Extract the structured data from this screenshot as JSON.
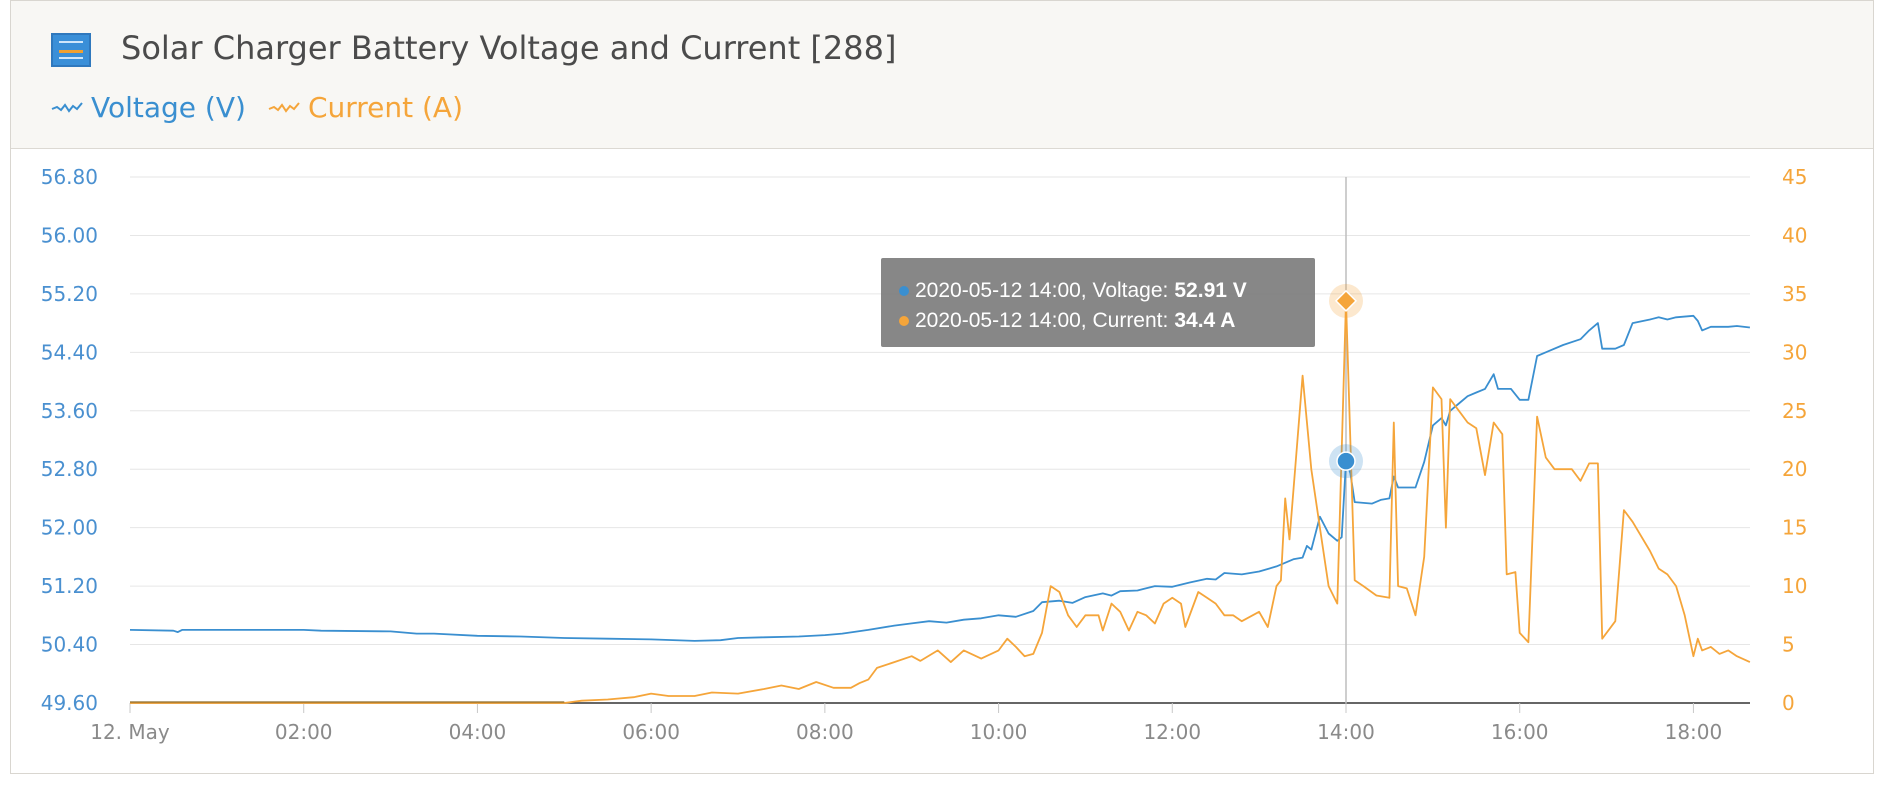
{
  "title": "Solar Charger Battery Voltage and Current [288]",
  "colors": {
    "voltage": "#3a8fd0",
    "current": "#f5a53a",
    "grid": "#e6e6e6",
    "axis_text_left": "#4a90d0",
    "axis_text_right": "#f5a53a"
  },
  "legend": [
    {
      "label": "Voltage (V)",
      "color": "#3a8fd0"
    },
    {
      "label": "Current (A)",
      "color": "#f5a53a"
    }
  ],
  "tooltip": {
    "voltage_prefix": "2020-05-12 14:00, Voltage:",
    "voltage_value": "52.91 V",
    "current_prefix": "2020-05-12 14:00, Current:",
    "current_value": "34.4 A"
  },
  "chart_data": {
    "type": "line",
    "x_unit": "hours",
    "x_ticks": [
      {
        "label": "12. May",
        "value": 0
      },
      {
        "label": "02:00",
        "value": 2
      },
      {
        "label": "04:00",
        "value": 4
      },
      {
        "label": "06:00",
        "value": 6
      },
      {
        "label": "08:00",
        "value": 8
      },
      {
        "label": "10:00",
        "value": 10
      },
      {
        "label": "12:00",
        "value": 12
      },
      {
        "label": "14:00",
        "value": 14
      },
      {
        "label": "16:00",
        "value": 16
      },
      {
        "label": "18:00",
        "value": 18
      }
    ],
    "xlim": [
      0,
      18.65
    ],
    "y_left": {
      "ticks": [
        "49.60",
        "50.40",
        "51.20",
        "52.00",
        "52.80",
        "53.60",
        "54.40",
        "55.20",
        "56.00",
        "56.80"
      ],
      "range": [
        49.6,
        56.8
      ]
    },
    "y_right": {
      "ticks": [
        "0",
        "5",
        "10",
        "15",
        "20",
        "25",
        "30",
        "35",
        "40",
        "45"
      ],
      "range": [
        0,
        45
      ]
    },
    "highlight_x": 14,
    "series": [
      {
        "name": "Voltage (V)",
        "axis": "left",
        "points": [
          [
            0,
            50.6
          ],
          [
            0.5,
            50.59
          ],
          [
            0.55,
            50.57
          ],
          [
            0.6,
            50.6
          ],
          [
            1,
            50.6
          ],
          [
            2,
            50.6
          ],
          [
            2.2,
            50.59
          ],
          [
            3,
            50.58
          ],
          [
            3.3,
            50.55
          ],
          [
            3.5,
            50.55
          ],
          [
            4,
            50.52
          ],
          [
            4.5,
            50.51
          ],
          [
            5,
            50.49
          ],
          [
            5.5,
            50.48
          ],
          [
            6,
            50.47
          ],
          [
            6.5,
            50.45
          ],
          [
            6.8,
            50.46
          ],
          [
            7,
            50.49
          ],
          [
            7.3,
            50.5
          ],
          [
            7.7,
            50.51
          ],
          [
            8,
            50.53
          ],
          [
            8.2,
            50.55
          ],
          [
            8.5,
            50.6
          ],
          [
            8.8,
            50.66
          ],
          [
            9.0,
            50.69
          ],
          [
            9.2,
            50.72
          ],
          [
            9.4,
            50.7
          ],
          [
            9.6,
            50.74
          ],
          [
            9.8,
            50.76
          ],
          [
            10,
            50.8
          ],
          [
            10.2,
            50.78
          ],
          [
            10.4,
            50.86
          ],
          [
            10.5,
            50.98
          ],
          [
            10.7,
            51.0
          ],
          [
            10.85,
            50.97
          ],
          [
            11,
            51.05
          ],
          [
            11.2,
            51.1
          ],
          [
            11.3,
            51.07
          ],
          [
            11.4,
            51.13
          ],
          [
            11.6,
            51.14
          ],
          [
            11.8,
            51.2
          ],
          [
            12,
            51.19
          ],
          [
            12.2,
            51.25
          ],
          [
            12.4,
            51.3
          ],
          [
            12.5,
            51.29
          ],
          [
            12.6,
            51.38
          ],
          [
            12.8,
            51.36
          ],
          [
            13,
            51.4
          ],
          [
            13.2,
            51.47
          ],
          [
            13.4,
            51.57
          ],
          [
            13.5,
            51.59
          ],
          [
            13.55,
            51.75
          ],
          [
            13.6,
            51.7
          ],
          [
            13.7,
            52.15
          ],
          [
            13.8,
            51.92
          ],
          [
            13.9,
            51.82
          ],
          [
            13.95,
            51.87
          ],
          [
            14.0,
            52.91
          ],
          [
            14.05,
            52.75
          ],
          [
            14.1,
            52.35
          ],
          [
            14.3,
            52.33
          ],
          [
            14.4,
            52.38
          ],
          [
            14.5,
            52.4
          ],
          [
            14.55,
            52.7
          ],
          [
            14.6,
            52.55
          ],
          [
            14.8,
            52.55
          ],
          [
            14.9,
            52.9
          ],
          [
            15.0,
            53.4
          ],
          [
            15.1,
            53.5
          ],
          [
            15.15,
            53.4
          ],
          [
            15.2,
            53.6
          ],
          [
            15.3,
            53.7
          ],
          [
            15.4,
            53.8
          ],
          [
            15.5,
            53.85
          ],
          [
            15.6,
            53.9
          ],
          [
            15.7,
            54.1
          ],
          [
            15.75,
            53.9
          ],
          [
            15.9,
            53.9
          ],
          [
            16.0,
            53.75
          ],
          [
            16.1,
            53.75
          ],
          [
            16.2,
            54.35
          ],
          [
            16.3,
            54.4
          ],
          [
            16.5,
            54.5
          ],
          [
            16.7,
            54.58
          ],
          [
            16.8,
            54.7
          ],
          [
            16.9,
            54.8
          ],
          [
            16.95,
            54.45
          ],
          [
            17.1,
            54.45
          ],
          [
            17.2,
            54.5
          ],
          [
            17.3,
            54.8
          ],
          [
            17.5,
            54.85
          ],
          [
            17.6,
            54.88
          ],
          [
            17.7,
            54.85
          ],
          [
            17.8,
            54.88
          ],
          [
            18.0,
            54.9
          ],
          [
            18.05,
            54.83
          ],
          [
            18.1,
            54.7
          ],
          [
            18.2,
            54.75
          ],
          [
            18.4,
            54.75
          ],
          [
            18.5,
            54.76
          ],
          [
            18.65,
            54.74
          ]
        ]
      },
      {
        "name": "Current (A)",
        "axis": "right",
        "points": [
          [
            0,
            0
          ],
          [
            1,
            0
          ],
          [
            2,
            0
          ],
          [
            3,
            0
          ],
          [
            4,
            0
          ],
          [
            5,
            0
          ],
          [
            5.2,
            0.2
          ],
          [
            5.5,
            0.3
          ],
          [
            5.8,
            0.5
          ],
          [
            6.0,
            0.8
          ],
          [
            6.2,
            0.6
          ],
          [
            6.5,
            0.6
          ],
          [
            6.7,
            0.9
          ],
          [
            7,
            0.8
          ],
          [
            7.3,
            1.2
          ],
          [
            7.5,
            1.5
          ],
          [
            7.7,
            1.2
          ],
          [
            7.9,
            1.8
          ],
          [
            8.1,
            1.3
          ],
          [
            8.3,
            1.3
          ],
          [
            8.4,
            1.7
          ],
          [
            8.5,
            2.0
          ],
          [
            8.6,
            3.0
          ],
          [
            8.8,
            3.5
          ],
          [
            9,
            4.0
          ],
          [
            9.1,
            3.6
          ],
          [
            9.3,
            4.5
          ],
          [
            9.45,
            3.5
          ],
          [
            9.6,
            4.5
          ],
          [
            9.8,
            3.8
          ],
          [
            10.0,
            4.5
          ],
          [
            10.1,
            5.5
          ],
          [
            10.2,
            4.8
          ],
          [
            10.3,
            4.0
          ],
          [
            10.4,
            4.2
          ],
          [
            10.5,
            6.0
          ],
          [
            10.55,
            8.0
          ],
          [
            10.6,
            10.0
          ],
          [
            10.7,
            9.5
          ],
          [
            10.8,
            7.5
          ],
          [
            10.9,
            6.5
          ],
          [
            11.0,
            7.5
          ],
          [
            11.15,
            7.5
          ],
          [
            11.2,
            6.2
          ],
          [
            11.3,
            8.5
          ],
          [
            11.4,
            7.8
          ],
          [
            11.5,
            6.2
          ],
          [
            11.6,
            7.8
          ],
          [
            11.7,
            7.5
          ],
          [
            11.8,
            6.8
          ],
          [
            11.9,
            8.5
          ],
          [
            12.0,
            9.0
          ],
          [
            12.1,
            8.5
          ],
          [
            12.15,
            6.5
          ],
          [
            12.3,
            9.5
          ],
          [
            12.4,
            9.0
          ],
          [
            12.5,
            8.5
          ],
          [
            12.6,
            7.5
          ],
          [
            12.7,
            7.5
          ],
          [
            12.8,
            7.0
          ],
          [
            13.0,
            7.8
          ],
          [
            13.1,
            6.5
          ],
          [
            13.2,
            10.0
          ],
          [
            13.25,
            10.5
          ],
          [
            13.3,
            17.5
          ],
          [
            13.35,
            14.0
          ],
          [
            13.5,
            28.0
          ],
          [
            13.6,
            20.0
          ],
          [
            13.7,
            15.0
          ],
          [
            13.8,
            10.0
          ],
          [
            13.9,
            8.5
          ],
          [
            14.0,
            34.4
          ],
          [
            14.1,
            10.5
          ],
          [
            14.2,
            10.0
          ],
          [
            14.35,
            9.2
          ],
          [
            14.5,
            9.0
          ],
          [
            14.55,
            24.0
          ],
          [
            14.6,
            10.0
          ],
          [
            14.7,
            9.8
          ],
          [
            14.8,
            7.5
          ],
          [
            14.9,
            12.5
          ],
          [
            15.0,
            27.0
          ],
          [
            15.1,
            26.0
          ],
          [
            15.15,
            15.0
          ],
          [
            15.2,
            26.0
          ],
          [
            15.3,
            25.0
          ],
          [
            15.4,
            24.0
          ],
          [
            15.5,
            23.5
          ],
          [
            15.6,
            19.5
          ],
          [
            15.7,
            24.0
          ],
          [
            15.8,
            23.0
          ],
          [
            15.85,
            11.0
          ],
          [
            15.95,
            11.2
          ],
          [
            16.0,
            6.0
          ],
          [
            16.1,
            5.2
          ],
          [
            16.2,
            24.5
          ],
          [
            16.3,
            21.0
          ],
          [
            16.4,
            20.0
          ],
          [
            16.6,
            20.0
          ],
          [
            16.7,
            19.0
          ],
          [
            16.8,
            20.5
          ],
          [
            16.9,
            20.5
          ],
          [
            16.95,
            5.5
          ],
          [
            17.1,
            7.0
          ],
          [
            17.2,
            16.5
          ],
          [
            17.3,
            15.5
          ],
          [
            17.5,
            13.0
          ],
          [
            17.6,
            11.5
          ],
          [
            17.7,
            11.0
          ],
          [
            17.8,
            10.0
          ],
          [
            17.9,
            7.5
          ],
          [
            18.0,
            4.0
          ],
          [
            18.05,
            5.5
          ],
          [
            18.1,
            4.5
          ],
          [
            18.2,
            4.8
          ],
          [
            18.3,
            4.2
          ],
          [
            18.4,
            4.5
          ],
          [
            18.5,
            4.0
          ],
          [
            18.65,
            3.5
          ]
        ]
      }
    ]
  }
}
